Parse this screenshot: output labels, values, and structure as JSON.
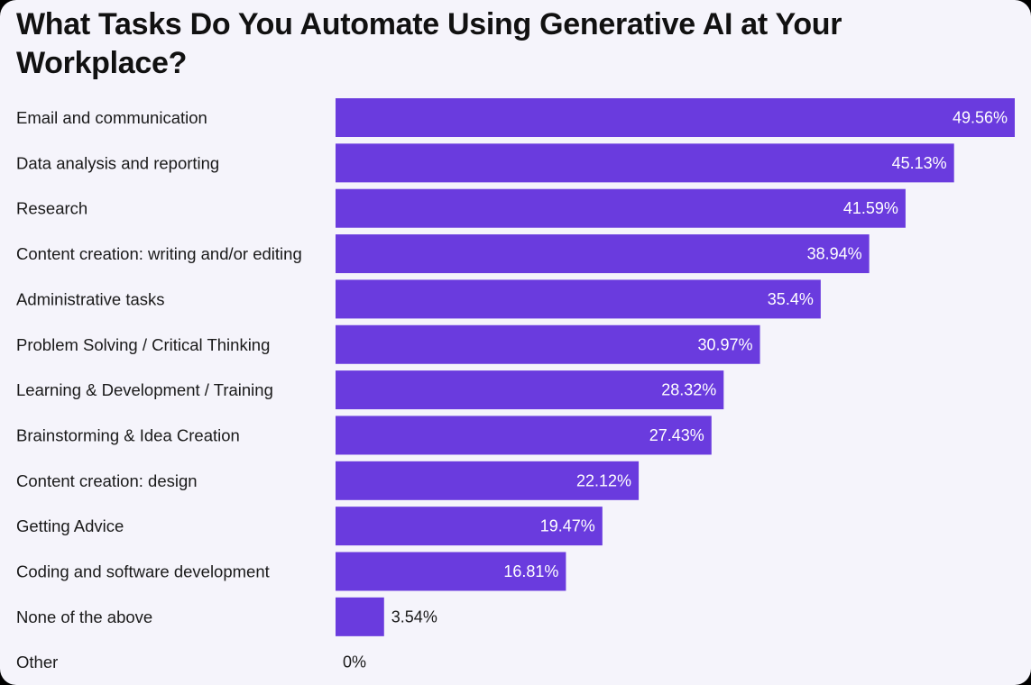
{
  "colors": {
    "background": "#f5f4fb",
    "bar": "#6a3bde",
    "label_inside": "#ffffff",
    "label_outside": "#1a1a1a"
  },
  "chart_data": {
    "type": "bar",
    "orientation": "horizontal",
    "title": "What Tasks Do You Automate Using Generative AI at Your Workplace?",
    "categories": [
      "Email and communication",
      "Data analysis and reporting",
      "Research",
      "Content creation: writing and/or editing",
      "Administrative tasks",
      "Problem Solving / Critical Thinking",
      "Learning & Development / Training",
      "Brainstorming & Idea Creation",
      "Content creation: design",
      "Getting Advice",
      "Coding and software development",
      "None of the above",
      "Other"
    ],
    "values": [
      49.56,
      45.13,
      41.59,
      38.94,
      35.4,
      30.97,
      28.32,
      27.43,
      22.12,
      19.47,
      16.81,
      3.54,
      0
    ],
    "data_labels": [
      "49.56%",
      "45.13%",
      "41.59%",
      "38.94%",
      "35.4%",
      "30.97%",
      "28.32%",
      "27.43%",
      "22.12%",
      "19.47%",
      "16.81%",
      "3.54%",
      "0%"
    ],
    "xlim": [
      0,
      49.56
    ],
    "grid": false,
    "legend": "none"
  }
}
